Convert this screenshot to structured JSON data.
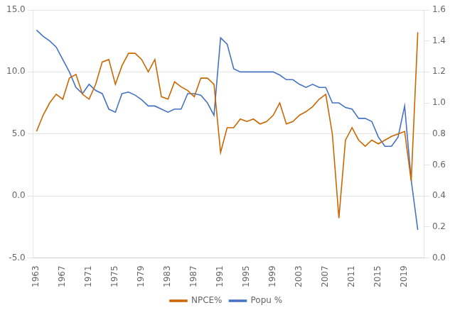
{
  "chart_data": {
    "type": "line",
    "x": [
      1963,
      1964,
      1965,
      1966,
      1967,
      1968,
      1969,
      1970,
      1971,
      1972,
      1973,
      1974,
      1975,
      1976,
      1977,
      1978,
      1979,
      1980,
      1981,
      1982,
      1983,
      1984,
      1985,
      1986,
      1987,
      1988,
      1989,
      1990,
      1991,
      1992,
      1993,
      1994,
      1995,
      1996,
      1997,
      1998,
      1999,
      2000,
      2001,
      2002,
      2003,
      2004,
      2005,
      2006,
      2007,
      2008,
      2009,
      2010,
      2011,
      2012,
      2013,
      2014,
      2015,
      2016,
      2017,
      2018,
      2019,
      2020,
      2021
    ],
    "series": [
      {
        "name": "NPCE%",
        "color": "#CC6600",
        "values": [
          5.2,
          6.5,
          7.5,
          8.2,
          7.8,
          9.5,
          9.8,
          8.2,
          7.8,
          9.0,
          10.8,
          11.0,
          9.0,
          10.5,
          11.5,
          11.5,
          11.0,
          10.0,
          11.0,
          8.0,
          7.8,
          9.2,
          8.8,
          8.5,
          8.0,
          9.5,
          9.5,
          9.0,
          3.5,
          5.5,
          5.5,
          6.2,
          6.0,
          6.2,
          5.8,
          6.0,
          6.5,
          7.5,
          5.8,
          6.0,
          6.5,
          6.8,
          7.2,
          7.8,
          8.2,
          5.0,
          -1.8,
          4.5,
          5.5,
          4.5,
          4.0,
          4.5,
          4.2,
          4.5,
          4.8,
          5.0,
          5.2,
          1.2,
          13.2
        ]
      },
      {
        "name": "Popu %",
        "color": "#4472C4",
        "axis": "y2",
        "values": [
          1.47,
          1.43,
          1.4,
          1.36,
          1.28,
          1.2,
          1.1,
          1.06,
          1.12,
          1.08,
          1.06,
          0.96,
          0.94,
          1.06,
          1.07,
          1.05,
          1.02,
          0.98,
          0.98,
          0.96,
          0.94,
          0.96,
          0.96,
          1.06,
          1.06,
          1.05,
          1.0,
          0.92,
          1.42,
          1.38,
          1.22,
          1.2,
          1.2,
          1.2,
          1.2,
          1.2,
          1.2,
          1.18,
          1.15,
          1.15,
          1.12,
          1.1,
          1.12,
          1.1,
          1.1,
          1.0,
          1.0,
          0.97,
          0.96,
          0.9,
          0.9,
          0.88,
          0.78,
          0.72,
          0.72,
          0.78,
          0.98,
          0.5,
          0.18
        ]
      }
    ],
    "xlim": [
      1962.5,
      2022
    ],
    "xticks": [
      1963,
      1967,
      1971,
      1975,
      1979,
      1983,
      1987,
      1991,
      1995,
      1999,
      2003,
      2007,
      2011,
      2015,
      2019
    ],
    "ylim": [
      -5.0,
      15.0
    ],
    "yticks": [
      {
        "value": -5,
        "label": "-5.0"
      },
      {
        "value": 0,
        "label": "0.0"
      },
      {
        "value": 5,
        "label": "5.0"
      },
      {
        "value": 10,
        "label": "10.0"
      },
      {
        "value": 15,
        "label": "15.0"
      }
    ],
    "y2lim": [
      0.0,
      1.6
    ],
    "y2ticks": [
      {
        "value": 0,
        "label": "0.0"
      },
      0.2,
      0.4,
      0.6,
      0.8,
      {
        "value": 1,
        "label": "1.0"
      },
      1.2,
      1.4,
      1.6
    ],
    "grid": "y",
    "legend": "bottom"
  }
}
